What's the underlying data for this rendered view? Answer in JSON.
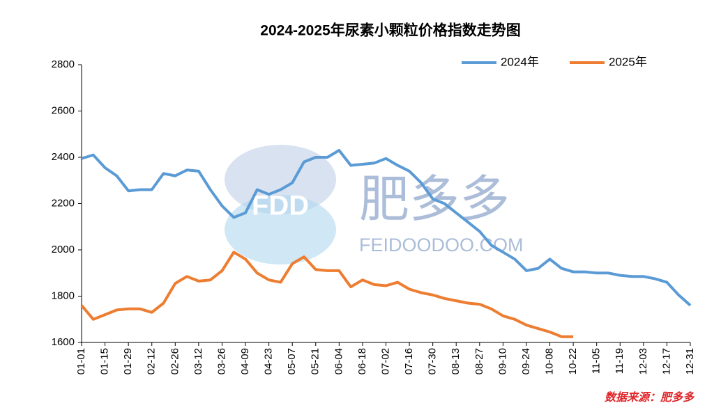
{
  "chart_data": {
    "type": "line",
    "title": "2024-2025年尿素小颗粒价格指数走势图",
    "source": "数据来源：肥多多",
    "watermark": {
      "logo": "FDD",
      "brand": "肥多多",
      "site": "FEIDOODOO.COM"
    },
    "categories": [
      "01-01",
      null,
      "01-15",
      null,
      "01-29",
      null,
      "02-12",
      null,
      "02-26",
      null,
      "03-12",
      null,
      "03-26",
      null,
      "04-09",
      null,
      "04-23",
      null,
      "05-07",
      null,
      "05-21",
      null,
      "06-04",
      null,
      "06-18",
      null,
      "07-02",
      null,
      "07-16",
      null,
      "07-30",
      null,
      "08-13",
      null,
      "08-27",
      null,
      "09-10",
      null,
      "09-24",
      null,
      "10-08",
      null,
      "10-22",
      null,
      "11-05",
      null,
      "11-19",
      null,
      "12-03",
      null,
      "12-17",
      null,
      "12-31"
    ],
    "series": [
      {
        "name": "2024年",
        "color": "#5b9bd5",
        "values": [
          2395,
          2410,
          2355,
          2320,
          2255,
          2260,
          2260,
          2330,
          2320,
          2345,
          2340,
          2260,
          2190,
          2140,
          2160,
          2260,
          2240,
          2260,
          2290,
          2380,
          2400,
          2400,
          2430,
          2365,
          2370,
          2375,
          2395,
          2365,
          2340,
          2290,
          2220,
          2200,
          2160,
          2120,
          2080,
          2020,
          1990,
          1960,
          1910,
          1920,
          1960,
          1920,
          1905,
          1905,
          1900,
          1900,
          1890,
          1885,
          1885,
          1875,
          1860,
          1805,
          1760
        ]
      },
      {
        "name": "2025年",
        "color": "#ed7d31",
        "values": [
          1760,
          1700,
          1720,
          1740,
          1745,
          1745,
          1730,
          1770,
          1855,
          1885,
          1865,
          1870,
          1910,
          1990,
          1960,
          1900,
          1870,
          1860,
          1940,
          1970,
          1915,
          1910,
          1910,
          1840,
          1870,
          1850,
          1845,
          1860,
          1830,
          1815,
          1805,
          1790,
          1780,
          1770,
          1765,
          1745,
          1715,
          1700,
          1675,
          1660,
          1645,
          1625,
          1625,
          null,
          null,
          null,
          null,
          null,
          null,
          null,
          null,
          null,
          null
        ]
      }
    ],
    "ylim": [
      1600,
      2800
    ],
    "yticks": [
      1600,
      1800,
      2000,
      2200,
      2400,
      2600,
      2800
    ],
    "legend": "top-right",
    "grid": false
  }
}
